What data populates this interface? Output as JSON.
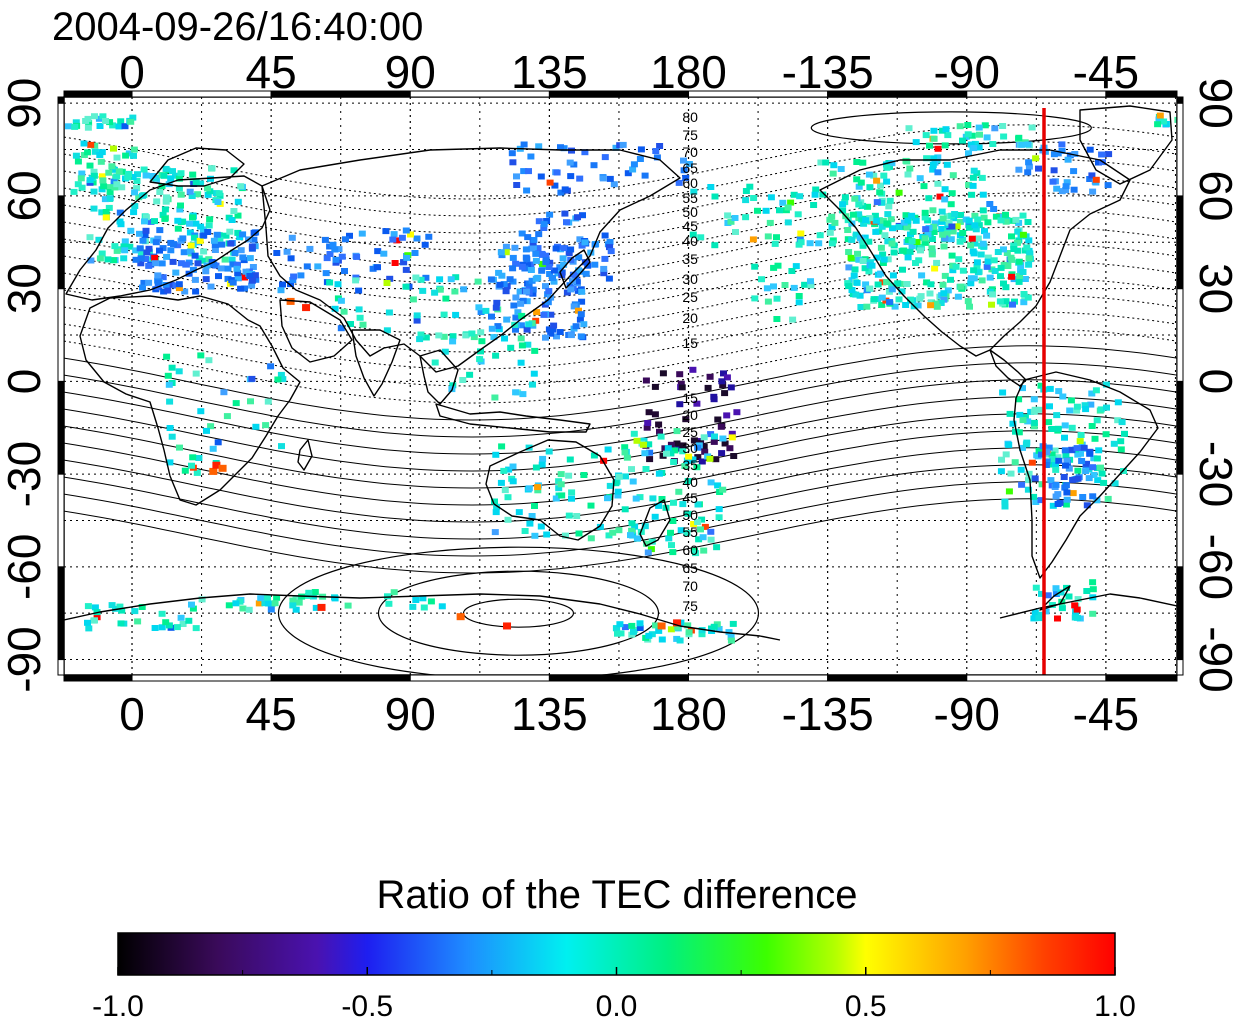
{
  "title": "2004-09-26/16:40:00",
  "map": {
    "type": "scatter",
    "projection": "equirectangular",
    "lon_ticks": [
      0,
      45,
      90,
      135,
      180,
      -135,
      -90,
      -45
    ],
    "lon_tick_labels": [
      "0",
      "45",
      "90",
      "135",
      "180",
      "-135",
      "-90",
      "-45"
    ],
    "lat_ticks_left": [
      "90",
      "60",
      "30",
      "0",
      "-30",
      "-60",
      "-90"
    ],
    "lat_ticks_right": [
      "90",
      "60",
      "30",
      "0",
      "-30",
      "-60",
      "-90"
    ],
    "lon_range": [
      -22,
      338
    ],
    "lat_range": [
      -95,
      92
    ],
    "grid": true,
    "reference_meridian_lon": -70,
    "reference_meridian_color": "#e60000",
    "dip_contour_labels_north": [
      "80",
      "75",
      "70",
      "65",
      "60",
      "55",
      "50",
      "45",
      "40",
      "35",
      "30",
      "25",
      "20",
      "15"
    ],
    "dip_contour_labels_south": [
      "15",
      "20",
      "25",
      "30",
      "35",
      "40",
      "45",
      "50",
      "55",
      "60",
      "65",
      "70",
      "75"
    ]
  },
  "colorbar": {
    "label": "Ratio of the TEC difference",
    "min": -1.0,
    "max": 1.0,
    "tick_labels": [
      "-1.0",
      "-0.5",
      "0.0",
      "0.5",
      "1.0"
    ]
  },
  "colors": {
    "frame": "#000000",
    "coast": "#000000"
  }
}
